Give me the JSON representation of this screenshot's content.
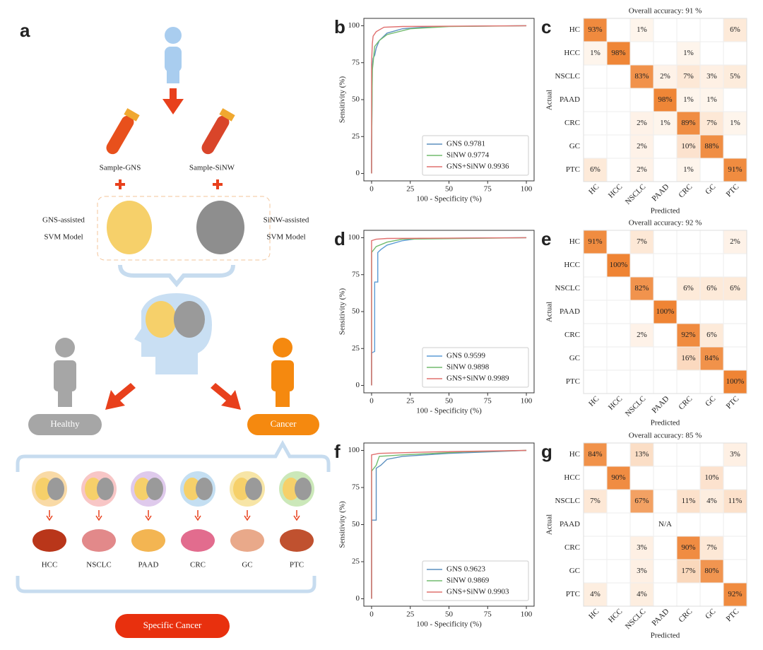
{
  "diagram": {
    "panel": "a",
    "sample_gns": "Sample-GNS",
    "sample_sinw": "Sample-SiNW",
    "gns_model": [
      "GNS-assisted",
      "SVM Model"
    ],
    "sinw_model": [
      "SiNW-assisted",
      "SVM Model"
    ],
    "healthy": "Healthy",
    "cancer": "Cancer",
    "organs": [
      "HCC",
      "NSCLC",
      "PAAD",
      "CRC",
      "GC",
      "PTC"
    ],
    "result": "Specific Cancer"
  },
  "chart_data": [
    {
      "type": "line",
      "panel": "b",
      "xlabel": "100 - Specificity (%)",
      "ylabel": "Sensitivity (%)",
      "xlim": [
        -5,
        105
      ],
      "ylim": [
        -5,
        105
      ],
      "xticks": [
        0,
        25,
        50,
        75,
        100
      ],
      "yticks": [
        0,
        25,
        50,
        75,
        100
      ],
      "legend": "lower right",
      "series": [
        {
          "name": "GNS 0.9781",
          "color": "#5b8fbf",
          "x": [
            0,
            0,
            0.5,
            1,
            2,
            3,
            5,
            10,
            20,
            40,
            100
          ],
          "values": [
            0,
            13,
            73,
            78,
            80,
            85,
            90,
            95,
            98,
            99.5,
            100
          ]
        },
        {
          "name": "SiNW 0.9774",
          "color": "#72bb6e",
          "x": [
            0,
            0,
            0.5,
            1,
            2,
            5,
            10,
            25,
            50,
            100
          ],
          "values": [
            0,
            15,
            70,
            75,
            86,
            90,
            94,
            98,
            99.5,
            100
          ]
        },
        {
          "name": "GNS+SiNW 0.9936",
          "color": "#e0706f",
          "x": [
            0,
            0,
            0.5,
            1,
            3,
            8,
            20,
            100
          ],
          "values": [
            0,
            75,
            88,
            93,
            96,
            99,
            99.5,
            100
          ]
        }
      ]
    },
    {
      "type": "heatmap",
      "panel": "c",
      "title": "Overall accuracy: 91 %",
      "xlabel": "Predicted",
      "ylabel": "Actual",
      "categories": [
        "HC",
        "HCC",
        "NSCLC",
        "PAAD",
        "CRC",
        "GC",
        "PTC"
      ],
      "color_range": [
        "#fffaf4",
        "#ef8434"
      ],
      "values": [
        [
          93,
          null,
          1,
          null,
          null,
          null,
          6
        ],
        [
          1,
          98,
          null,
          null,
          1,
          null,
          null
        ],
        [
          null,
          null,
          83,
          2,
          7,
          3,
          5
        ],
        [
          null,
          null,
          null,
          98,
          1,
          1,
          null
        ],
        [
          null,
          null,
          2,
          1,
          89,
          7,
          1
        ],
        [
          null,
          null,
          2,
          null,
          10,
          88,
          null
        ],
        [
          6,
          null,
          2,
          null,
          1,
          null,
          91
        ]
      ],
      "value_labels": [
        [
          "93%",
          null,
          "1%",
          null,
          null,
          null,
          "6%"
        ],
        [
          "1%",
          "98%",
          null,
          null,
          "1%",
          null,
          null
        ],
        [
          null,
          null,
          "83%",
          "2%",
          "7%",
          "3%",
          "5%"
        ],
        [
          null,
          null,
          null,
          "98%",
          "1%",
          "1%",
          null
        ],
        [
          null,
          null,
          "2%",
          "1%",
          "89%",
          "7%",
          "1%"
        ],
        [
          null,
          null,
          "2%",
          null,
          "10%",
          "88%",
          null
        ],
        [
          "6%",
          null,
          "2%",
          null,
          "1%",
          null,
          "91%"
        ]
      ]
    },
    {
      "type": "line",
      "panel": "d",
      "xlabel": "100 - Specificity (%)",
      "ylabel": "Sensitivity (%)",
      "xlim": [
        -5,
        105
      ],
      "ylim": [
        -5,
        105
      ],
      "xticks": [
        0,
        25,
        50,
        75,
        100
      ],
      "yticks": [
        0,
        25,
        50,
        75,
        100
      ],
      "legend": "lower right",
      "series": [
        {
          "name": "GNS 0.9599",
          "color": "#5b9bd5",
          "x": [
            0,
            0,
            2,
            2,
            4,
            4,
            6,
            10,
            20,
            30,
            100
          ],
          "values": [
            0,
            22,
            23,
            70,
            70,
            90,
            92,
            95,
            98,
            99.5,
            100
          ]
        },
        {
          "name": "SiNW 0.9898",
          "color": "#72bb6e",
          "x": [
            0,
            0,
            3,
            10,
            20,
            100
          ],
          "values": [
            0,
            90,
            94,
            97,
            99,
            100
          ]
        },
        {
          "name": "GNS+SiNW 0.9989",
          "color": "#e0706f",
          "x": [
            0,
            0,
            3,
            10,
            100
          ],
          "values": [
            0,
            98,
            99,
            99.5,
            100
          ]
        }
      ]
    },
    {
      "type": "heatmap",
      "panel": "e",
      "title": "Overall accuracy: 92 %",
      "xlabel": "Predicted",
      "ylabel": "Actual",
      "categories": [
        "HC",
        "HCC",
        "NSCLC",
        "PAAD",
        "CRC",
        "GC",
        "PTC"
      ],
      "color_range": [
        "#fffaf4",
        "#ef8434"
      ],
      "values": [
        [
          91,
          null,
          7,
          null,
          null,
          null,
          2
        ],
        [
          null,
          100,
          null,
          null,
          null,
          null,
          null
        ],
        [
          null,
          null,
          82,
          null,
          6,
          6,
          6
        ],
        [
          null,
          null,
          null,
          100,
          null,
          null,
          null
        ],
        [
          null,
          null,
          2,
          null,
          92,
          6,
          null
        ],
        [
          null,
          null,
          null,
          null,
          16,
          84,
          null
        ],
        [
          null,
          null,
          null,
          null,
          null,
          null,
          100
        ]
      ],
      "value_labels": [
        [
          "91%",
          null,
          "7%",
          null,
          null,
          null,
          "2%"
        ],
        [
          null,
          "100%",
          null,
          null,
          null,
          null,
          null
        ],
        [
          null,
          null,
          "82%",
          null,
          "6%",
          "6%",
          "6%"
        ],
        [
          null,
          null,
          null,
          "100%",
          null,
          null,
          null
        ],
        [
          null,
          null,
          "2%",
          null,
          "92%",
          "6%",
          null
        ],
        [
          null,
          null,
          null,
          null,
          "16%",
          "84%",
          null
        ],
        [
          null,
          null,
          null,
          null,
          null,
          null,
          "100%"
        ]
      ]
    },
    {
      "type": "line",
      "panel": "f",
      "xlabel": "100 - Specificity (%)",
      "ylabel": "Sensitivity (%)",
      "xlim": [
        -5,
        105
      ],
      "ylim": [
        -5,
        105
      ],
      "xticks": [
        0,
        25,
        50,
        75,
        100
      ],
      "yticks": [
        0,
        25,
        50,
        75,
        100
      ],
      "legend": "lower right",
      "series": [
        {
          "name": "GNS 0.9623",
          "color": "#5b8fbf",
          "x": [
            0,
            0,
            3,
            3,
            6,
            10,
            20,
            50,
            100
          ],
          "values": [
            0,
            53,
            53,
            88,
            90,
            94,
            96,
            98,
            100
          ]
        },
        {
          "name": "SiNW 0.9869",
          "color": "#72bb6e",
          "x": [
            0,
            0,
            3,
            5,
            20,
            60,
            100
          ],
          "values": [
            0,
            86,
            90,
            96,
            97,
            99,
            100
          ]
        },
        {
          "name": "GNS+SiNW 0.9903",
          "color": "#e0706f",
          "x": [
            0,
            0,
            5,
            40,
            100
          ],
          "values": [
            0,
            97,
            98,
            99,
            100
          ]
        }
      ]
    },
    {
      "type": "heatmap",
      "panel": "g",
      "title": "Overall accuracy: 85 %",
      "xlabel": "Predicted",
      "ylabel": "Actual",
      "categories": [
        "HC",
        "HCC",
        "NSCLC",
        "PAAD",
        "CRC",
        "GC",
        "PTC"
      ],
      "color_range": [
        "#fffaf4",
        "#ef8434"
      ],
      "values": [
        [
          84,
          null,
          13,
          null,
          null,
          null,
          3
        ],
        [
          null,
          90,
          null,
          null,
          null,
          10,
          null
        ],
        [
          7,
          null,
          67,
          null,
          11,
          4,
          11
        ],
        [
          null,
          null,
          null,
          null,
          null,
          null,
          null
        ],
        [
          null,
          null,
          3,
          null,
          90,
          7,
          null
        ],
        [
          null,
          null,
          3,
          null,
          17,
          80,
          null
        ],
        [
          4,
          null,
          4,
          null,
          null,
          null,
          92
        ]
      ],
      "value_labels": [
        [
          "84%",
          null,
          "13%",
          null,
          null,
          null,
          "3%"
        ],
        [
          null,
          "90%",
          null,
          null,
          null,
          "10%",
          null
        ],
        [
          "7%",
          null,
          "67%",
          null,
          "11%",
          "4%",
          "11%"
        ],
        [
          null,
          null,
          null,
          "N/A",
          null,
          null,
          null
        ],
        [
          null,
          null,
          "3%",
          null,
          "90%",
          "7%",
          null
        ],
        [
          null,
          null,
          "3%",
          null,
          "17%",
          "80%",
          null
        ],
        [
          "4%",
          null,
          "4%",
          null,
          null,
          null,
          "92%"
        ]
      ]
    }
  ]
}
